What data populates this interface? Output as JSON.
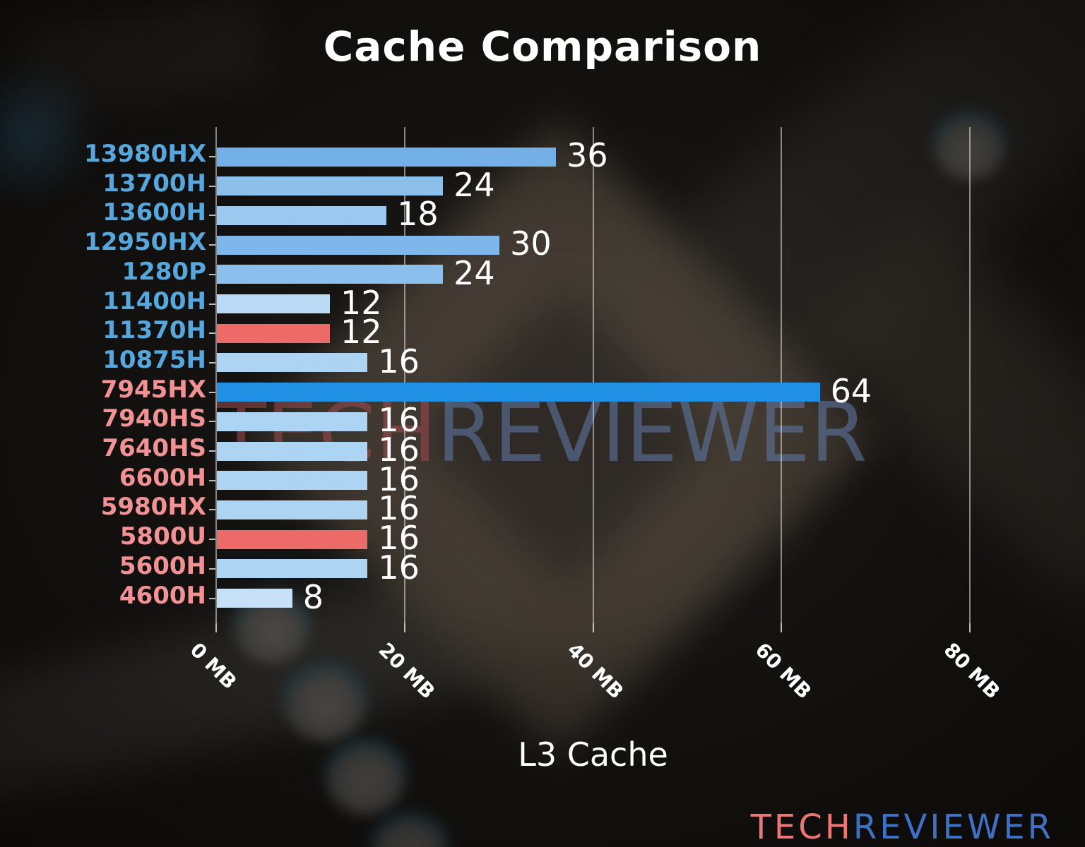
{
  "chart_data": {
    "type": "bar",
    "orientation": "horizontal",
    "title": "Cache Comparison",
    "xlabel": "L3 Cache",
    "xlim": [
      0,
      80
    ],
    "grid": "vertical",
    "value_unit": "MB",
    "x_ticks": [
      {
        "value": 0,
        "label": "0 MB"
      },
      {
        "value": 20,
        "label": "20 MB"
      },
      {
        "value": 40,
        "label": "40 MB"
      },
      {
        "value": 60,
        "label": "60 MB"
      },
      {
        "value": 80,
        "label": "80 MB"
      }
    ],
    "rows": [
      {
        "model": "13980HX",
        "value": 36,
        "bar_color": "#74B0E8",
        "label_color": "#56A7DE"
      },
      {
        "model": "13700H",
        "value": 24,
        "bar_color": "#8CBFEC",
        "label_color": "#56A7DE"
      },
      {
        "model": "13600H",
        "value": 18,
        "bar_color": "#9CC8F0",
        "label_color": "#56A7DE"
      },
      {
        "model": "12950HX",
        "value": 30,
        "bar_color": "#80B7EA",
        "label_color": "#56A7DE"
      },
      {
        "model": "1280P",
        "value": 24,
        "bar_color": "#8CBFEC",
        "label_color": "#56A7DE"
      },
      {
        "model": "11400H",
        "value": 12,
        "bar_color": "#BADAF6",
        "label_color": "#56A7DE"
      },
      {
        "model": "11370H",
        "value": 12,
        "bar_color": "#EC6B69",
        "label_color": "#56A7DE"
      },
      {
        "model": "10875H",
        "value": 16,
        "bar_color": "#AED4F3",
        "label_color": "#56A7DE"
      },
      {
        "model": "7945HX",
        "value": 64,
        "bar_color": "#2090E4",
        "label_color": "#F29294"
      },
      {
        "model": "7940HS",
        "value": 16,
        "bar_color": "#AED4F3",
        "label_color": "#F29294"
      },
      {
        "model": "7640HS",
        "value": 16,
        "bar_color": "#AED4F3",
        "label_color": "#F29294"
      },
      {
        "model": "6600H",
        "value": 16,
        "bar_color": "#AED4F3",
        "label_color": "#F29294"
      },
      {
        "model": "5980HX",
        "value": 16,
        "bar_color": "#AED4F3",
        "label_color": "#F29294"
      },
      {
        "model": "5800U",
        "value": 16,
        "bar_color": "#EC6B69",
        "label_color": "#F29294"
      },
      {
        "model": "5600H",
        "value": 16,
        "bar_color": "#AED4F3",
        "label_color": "#F29294"
      },
      {
        "model": "4600H",
        "value": 8,
        "bar_color": "#C6E0F8",
        "label_color": "#F29294"
      }
    ],
    "value_label_color": "#FFFFFF",
    "gridline_color": "rgba(230,230,230,0.55)"
  },
  "watermark": {
    "tech": "TECH",
    "reviewer": "REVIEWER"
  },
  "brand": {
    "tech": "TECH",
    "reviewer": "REVIEWER",
    "tech_color": "#EC7673",
    "reviewer_color": "#3D71C5"
  }
}
